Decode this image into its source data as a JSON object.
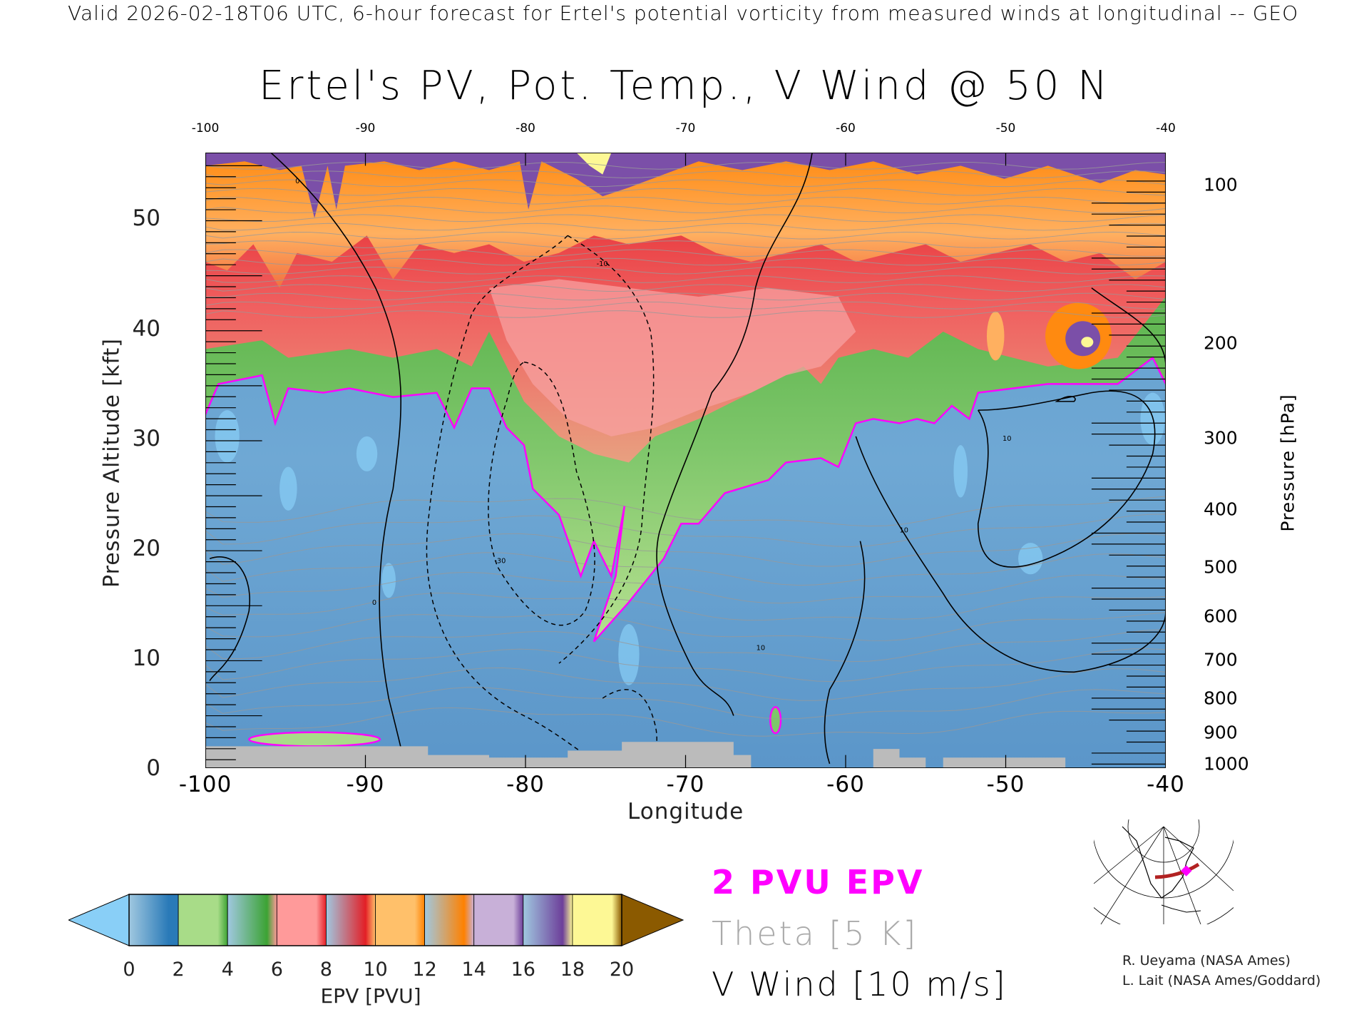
{
  "header": {
    "top_line": "Valid 2026-02-18T06 UTC, 6-hour forecast for Ertel's potential vorticity from measured winds at longitudinal -- GEO"
  },
  "chart_data": {
    "type": "heatmap",
    "title": "Ertel's PV, Pot. Temp., V Wind @ 50 N",
    "xlabel": "Longitude",
    "ylabel": "Pressure Altitude [kft]",
    "ylabel_right": "Pressure [hPa]",
    "xlim": [
      -100,
      -40
    ],
    "ylim": [
      0,
      56
    ],
    "x_ticks": [
      "-100",
      "-90",
      "-80",
      "-70",
      "-60",
      "-50",
      "-40"
    ],
    "x_ticks_top": [
      "-100",
      "-90",
      "-80",
      "-70",
      "-60",
      "-50",
      "-40"
    ],
    "y_ticks": [
      "0",
      "10",
      "20",
      "30",
      "40",
      "50"
    ],
    "y_ticks_right": [
      "100",
      "200",
      "300",
      "400",
      "500",
      "600",
      "700",
      "800",
      "900",
      "1000"
    ],
    "colorbar": {
      "label": "EPV [PVU]",
      "ticks": [
        "0",
        "2",
        "4",
        "6",
        "8",
        "10",
        "12",
        "14",
        "16",
        "18",
        "20"
      ],
      "colors": [
        "#89cff7",
        "#2a7ab8",
        "#a8dc88",
        "#3ca334",
        "#ff9a9a",
        "#e31f26",
        "#ffc06a",
        "#ff8100",
        "#c8b0d8",
        "#6d3f9a",
        "#fdf895",
        "#8b5a00"
      ]
    },
    "legend": [
      "2 PVU EPV",
      "Theta [5 K]",
      "V Wind [10 m/s]"
    ],
    "contour_labels": [
      "0",
      "10",
      "-10",
      "-30",
      "30"
    ],
    "pvu_2_line_color": "#ff00ff",
    "summary_tropopause_kft_by_lon": {
      "-100": 32,
      "-90": 34,
      "-80": 31,
      "-75": 14,
      "-70": 22,
      "-60": 26,
      "-50": 34,
      "-40": 35
    }
  },
  "credits": [
    "R. Ueyama (NASA Ames)",
    "L. Lait (NASA Ames/Goddard)"
  ]
}
